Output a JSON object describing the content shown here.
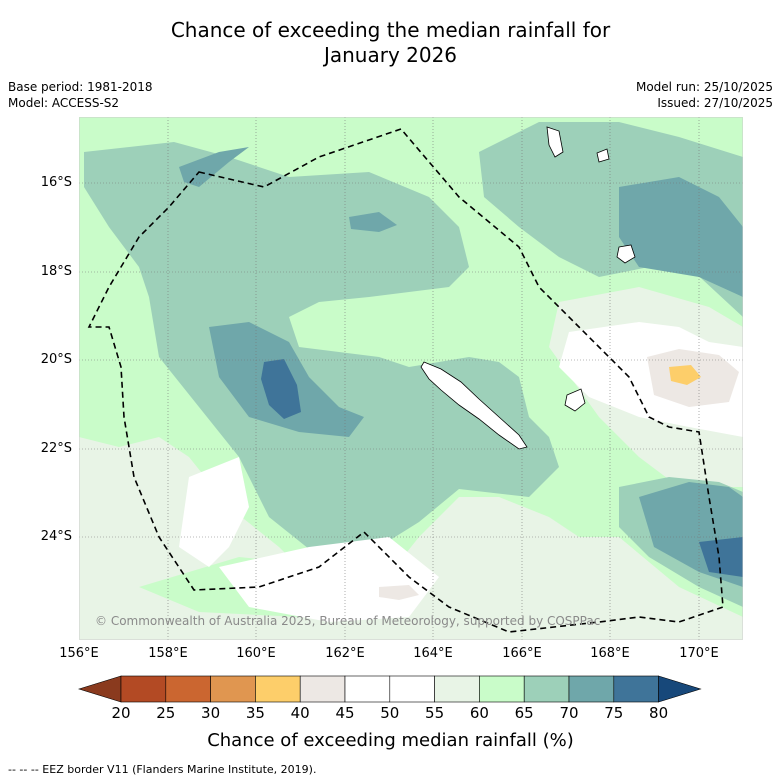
{
  "title": {
    "line1": "Chance of exceeding the median rainfall for",
    "line2": "January 2026"
  },
  "meta": {
    "base_period": "Base period: 1981-2018",
    "model": "Model: ACCESS-S2",
    "model_run": "Model run: 25/10/2025",
    "issued": "Issued: 27/10/2025"
  },
  "map": {
    "lat_labels": [
      "16°S",
      "18°S",
      "20°S",
      "22°S",
      "24°S"
    ],
    "lon_labels": [
      "156°E",
      "158°E",
      "160°E",
      "162°E",
      "164°E",
      "166°E",
      "168°E",
      "170°E"
    ],
    "copyright": "© Commonwealth of Australia 2025, Bureau of Meteorology, supported by COSPPac"
  },
  "colorbar": {
    "ticks": [
      "20",
      "25",
      "30",
      "35",
      "40",
      "45",
      "50",
      "55",
      "60",
      "65",
      "70",
      "75",
      "80"
    ],
    "colors": [
      "#b34a24",
      "#cb6630",
      "#e09650",
      "#fdce6a",
      "#ede8e4",
      "#ffffff",
      "#ffffff",
      "#e8f4e6",
      "#c9fcc9",
      "#9dd0b9",
      "#6fa7aa",
      "#3f7499"
    ],
    "extend_low_color": "#8a3a1e",
    "extend_high_color": "#17487a",
    "title": "Chance of exceeding median rainfall (%)"
  },
  "legend": {
    "eez": "--  --  -- EEZ border V11 (Flanders Marine Institute, 2019)."
  }
}
